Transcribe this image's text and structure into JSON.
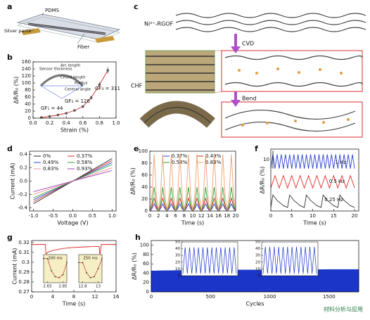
{
  "chart_data": [
    {
      "type": "line",
      "panel": "b",
      "xlabel": "Strain (%)",
      "ylabel": "ΔR/R₀ (%)",
      "markers": true,
      "xlim": [
        0,
        1.0
      ],
      "xticks": [
        {
          "value": 0,
          "label": "0.0"
        },
        0.2,
        0.4,
        0.6,
        0.8,
        {
          "value": 1,
          "label": "1.0"
        }
      ],
      "ylim": [
        0,
        160
      ],
      "yticks": [
        0,
        20,
        40,
        60,
        80,
        100,
        120,
        140,
        160
      ],
      "x": [
        0.1,
        0.2,
        0.3,
        0.4,
        0.5,
        0.6,
        0.7,
        0.8,
        0.9
      ],
      "series": [
        {
          "color": "#d62728",
          "values": [
            2,
            5,
            9,
            14,
            22,
            33,
            58,
            95,
            136
          ],
          "errors": [
            1,
            1,
            2,
            2,
            3,
            4,
            6,
            8,
            10
          ]
        }
      ],
      "annotations": [
        "GF₁ = 44",
        "GF₂ = 126",
        "GF₃ = 311"
      ],
      "inset_labels": [
        "Sensor thickness",
        "Arc length",
        "Chord length",
        "Radius",
        "Central angle"
      ]
    },
    {
      "type": "line",
      "panel": "d",
      "xlabel": "Voltage (V)",
      "ylabel": "Current (mA)",
      "xlim": [
        -1.1,
        1.1
      ],
      "xticks": [
        {
          "value": -1,
          "label": "-1.0"
        },
        -0.5,
        {
          "value": 0,
          "label": "0.0"
        },
        0.5,
        {
          "value": 1,
          "label": "1.0"
        }
      ],
      "ylim": [
        -0.45,
        0.45
      ],
      "yticks": [
        -0.4,
        -0.2,
        {
          "value": 0,
          "label": "0.0"
        },
        0.2,
        0.4
      ],
      "x": [
        -1,
        1
      ],
      "series": [
        {
          "name": "0%",
          "color": "#222222",
          "values": [
            -0.34,
            0.34
          ]
        },
        {
          "name": "0.37%",
          "color": "#d62728",
          "values": [
            -0.31,
            0.31
          ]
        },
        {
          "name": "0.49%",
          "color": "#1f4fd6",
          "values": [
            -0.28,
            0.28
          ]
        },
        {
          "name": "0.58%",
          "color": "#2ca02c",
          "values": [
            -0.25,
            0.25
          ]
        },
        {
          "name": "0.83%",
          "color": "#f08c8c",
          "values": [
            -0.2,
            0.2
          ]
        },
        {
          "name": "0.93%",
          "color": "#9b3fb5",
          "values": [
            -0.16,
            0.16
          ]
        }
      ]
    },
    {
      "type": "line",
      "panel": "e",
      "xlabel": "Time (s)",
      "ylabel": "ΔR/R₀ (%)",
      "xlim": [
        0,
        20
      ],
      "xticks": [
        0,
        2,
        4,
        6,
        8,
        10,
        12,
        14,
        16,
        18,
        20
      ],
      "ylim": [
        0,
        100
      ],
      "yticks": [
        0,
        20,
        40,
        60,
        80,
        100
      ],
      "x": [
        0,
        0.5,
        1,
        1.5,
        2,
        2.5,
        3,
        3.5,
        4,
        4.5,
        5,
        5.5,
        6,
        6.5,
        7,
        7.5,
        8,
        8.5,
        9,
        9.5,
        10,
        10.5,
        11,
        11.5,
        12,
        12.5,
        13,
        13.5,
        14,
        14.5,
        15,
        15.5,
        16,
        16.5,
        17,
        17.5,
        18,
        18.5,
        19,
        19.5,
        20
      ],
      "series": [
        {
          "name": "0.37%",
          "color": "#1f4fd6",
          "values": [
            0,
            4,
            12,
            4,
            0,
            4,
            12,
            4,
            0,
            4,
            12,
            4,
            0,
            4,
            12,
            4,
            0,
            4,
            12,
            4,
            0,
            4,
            12,
            4,
            0,
            4,
            12,
            4,
            0,
            4,
            12,
            4,
            0,
            4,
            12,
            4,
            0,
            4,
            12,
            4,
            0
          ]
        },
        {
          "name": "0.49%",
          "color": "#d62728",
          "values": [
            0,
            7,
            22,
            7,
            0,
            7,
            22,
            7,
            0,
            7,
            22,
            7,
            0,
            7,
            22,
            7,
            0,
            7,
            22,
            7,
            0,
            7,
            22,
            7,
            0,
            7,
            22,
            7,
            0,
            7,
            22,
            7,
            0,
            7,
            22,
            7,
            0,
            7,
            22,
            7,
            0
          ]
        },
        {
          "name": "0.58%",
          "color": "#2ca02c",
          "values": [
            0,
            12,
            40,
            12,
            0,
            12,
            40,
            12,
            0,
            12,
            40,
            12,
            0,
            12,
            40,
            12,
            0,
            12,
            40,
            12,
            0,
            12,
            40,
            12,
            0,
            12,
            40,
            12,
            0,
            12,
            40,
            12,
            0,
            12,
            40,
            12,
            0,
            12,
            40,
            12,
            0
          ]
        },
        {
          "name": "0.83%",
          "color": "#f0a070",
          "values": [
            0,
            28,
            95,
            28,
            0,
            28,
            95,
            28,
            0,
            28,
            95,
            28,
            0,
            28,
            95,
            28,
            0,
            28,
            95,
            28,
            0,
            28,
            95,
            28,
            0,
            28,
            95,
            28,
            0,
            28,
            95,
            28,
            0,
            28,
            95,
            28,
            0,
            28,
            95,
            28,
            0
          ]
        }
      ]
    },
    {
      "type": "line",
      "panel": "f",
      "xlabel": "Time (s)",
      "ylabel": "ΔR/R₀ (%)",
      "scale_bar": 10,
      "xlim": [
        0,
        21
      ],
      "xticks": [
        0,
        5,
        10,
        15,
        20
      ],
      "ylim": [
        0,
        35
      ],
      "x": [
        0,
        0.5,
        1,
        1.5,
        2,
        2.5,
        3,
        3.5,
        4,
        4.5,
        5,
        5.5,
        6,
        6.5,
        7,
        7.5,
        8,
        8.5,
        9,
        9.5,
        10,
        10.5,
        11,
        11.5,
        12,
        12.5,
        13,
        13.5,
        14,
        14.5,
        15,
        15.5,
        16,
        16.5,
        17,
        17.5,
        18,
        18.5,
        19,
        19.5,
        20
      ],
      "series": [
        {
          "color": "#2b3fd6",
          "values": [
            24,
            32,
            24,
            32,
            24,
            32,
            24,
            32,
            24,
            32,
            24,
            32,
            24,
            32,
            24,
            32,
            24,
            32,
            24,
            32,
            24,
            32,
            24,
            32,
            24,
            32,
            24,
            32,
            24,
            32,
            24,
            32,
            24,
            32,
            24,
            32,
            24,
            32,
            24,
            32,
            24
          ]
        },
        {
          "color": "#e0302a",
          "values": [
            13,
            16.5,
            20,
            16.5,
            13,
            16.5,
            20,
            16.5,
            13,
            16.5,
            20,
            16.5,
            13,
            16.5,
            20,
            16.5,
            13,
            16.5,
            20,
            16.5,
            13,
            16.5,
            20,
            16.5,
            13,
            16.5,
            20,
            16.5,
            13,
            16.5,
            20,
            16.5,
            13,
            16.5,
            20,
            16.5,
            13,
            16.5,
            20,
            16.5,
            13
          ]
        },
        {
          "color": "#333333",
          "values": [
            2,
            9,
            7.5,
            6,
            5,
            4,
            3,
            2.5,
            2,
            9,
            7.5,
            6,
            5,
            4,
            3,
            2.5,
            2,
            9,
            7.5,
            6,
            5,
            4,
            3,
            2.5,
            2,
            9,
            7.5,
            6,
            5,
            4,
            3,
            2.5,
            2,
            9,
            7.5,
            6,
            5,
            4,
            3,
            2.5,
            2
          ]
        }
      ],
      "annotations": [
        "1 Hz",
        "0.5 Hz",
        "0.25 Hz"
      ]
    },
    {
      "type": "line",
      "panel": "g",
      "xlabel": "Time (s)",
      "ylabel": "Current (mA)",
      "xlim": [
        0,
        16
      ],
      "xticks": [
        0,
        4,
        8,
        12,
        16
      ],
      "ylim": [
        0.27,
        0.322
      ],
      "yticks": [
        0.27,
        0.28,
        0.29,
        0.3,
        0.31,
        0.32
      ],
      "x": [
        0,
        2.6,
        2.7,
        2.8,
        3,
        4,
        6,
        8,
        10,
        12,
        12.8,
        12.9,
        13,
        13.2,
        14,
        16
      ],
      "series": [
        {
          "color": "#d62728",
          "values": [
            0.318,
            0.318,
            0.309,
            0.3085,
            0.31,
            0.312,
            0.314,
            0.315,
            0.3155,
            0.316,
            0.316,
            0.309,
            0.3085,
            0.318,
            0.318,
            0.318
          ]
        }
      ],
      "insets": [
        {
          "label": "200 ms",
          "xlim": [
            2.6,
            2.9
          ],
          "xticks": [
            2.65,
            2.85
          ],
          "ylim": [
            0.306,
            0.32
          ],
          "x": [
            2.6,
            2.65,
            2.7,
            2.75,
            2.8,
            2.85,
            2.9
          ],
          "values": [
            0.318,
            0.318,
            0.312,
            0.309,
            0.3085,
            0.31,
            0.316
          ]
        },
        {
          "label": "250 ms",
          "xlim": [
            12.75,
            13.05
          ],
          "xticks": [
            12.8,
            13
          ],
          "ylim": [
            0.306,
            0.32
          ],
          "x": [
            12.75,
            12.8,
            12.85,
            12.9,
            12.95,
            13,
            13.05
          ],
          "values": [
            0.316,
            0.316,
            0.311,
            0.3085,
            0.309,
            0.313,
            0.318
          ]
        }
      ]
    },
    {
      "type": "area",
      "panel": "h",
      "xlabel": "Cycles",
      "ylabel": "ΔR/R₀ (%)",
      "xlim": [
        0,
        1750
      ],
      "xticks": [
        0,
        500,
        1000,
        1500
      ],
      "ylim": [
        0,
        110
      ],
      "yticks": [
        0,
        20,
        40,
        60,
        80,
        100
      ],
      "x": [
        0,
        250,
        500,
        750,
        1000,
        1250,
        1500,
        1750
      ],
      "series": [
        {
          "color": "#1a35c8",
          "values": [
            45,
            46,
            46,
            47,
            47,
            47,
            48,
            48
          ]
        }
      ],
      "insets": [
        {
          "ylim": [
            0,
            50
          ],
          "yticks": [
            0,
            10,
            20,
            30,
            40,
            50
          ],
          "values": [
            3,
            42,
            3,
            42,
            3,
            42,
            3,
            42,
            3,
            42,
            3,
            42,
            3,
            42,
            3,
            42,
            3,
            42,
            3,
            42,
            3,
            42,
            3,
            42,
            3
          ]
        },
        {
          "ylim": [
            0,
            50
          ],
          "yticks": [
            0,
            10,
            20,
            30,
            40,
            50
          ],
          "values": [
            3,
            43,
            3,
            43,
            3,
            43,
            3,
            43,
            3,
            43,
            3,
            43,
            3,
            43,
            3,
            43,
            3,
            43,
            3,
            43,
            3,
            43,
            3,
            43,
            3
          ]
        }
      ]
    }
  ],
  "diagrams": {
    "a": {
      "panel": "a",
      "labels": [
        "PDMS",
        "Silver paste",
        "Fiber"
      ]
    },
    "c": {
      "panel": "c",
      "labels": [
        "Ni²⁺-RGOF",
        "CVD",
        "CHF",
        "Bend"
      ]
    }
  },
  "watermark": "材料分析与应用"
}
